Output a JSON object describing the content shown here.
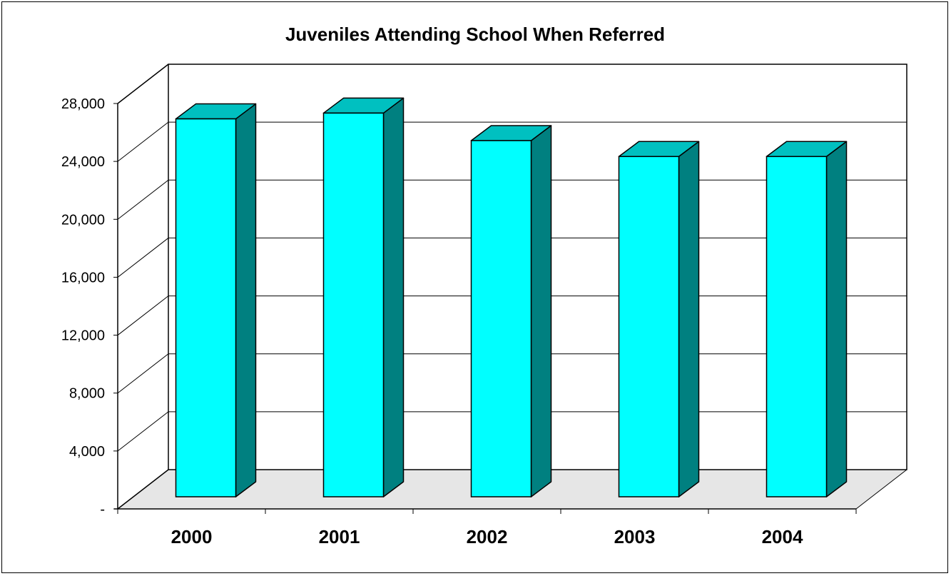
{
  "chart_data": {
    "type": "bar",
    "title": "Juveniles Attending School When Referred",
    "xlabel": "",
    "ylabel": "",
    "categories": [
      "2000",
      "2001",
      "2002",
      "2003",
      "2004"
    ],
    "values": [
      26100,
      26500,
      24600,
      23500,
      23500
    ],
    "ylim": [
      0,
      28000
    ],
    "yticks": [
      0,
      4000,
      8000,
      12000,
      16000,
      20000,
      24000,
      28000
    ],
    "ytick_labels": [
      "-",
      "4,000",
      "8,000",
      "12,000",
      "16,000",
      "20,000",
      "24,000",
      "28,000"
    ],
    "grid": true,
    "legend": "none",
    "style": "3d-column",
    "colors": {
      "bar_front": "#00FFFF",
      "bar_side": "#008080",
      "bar_top": "#00C0C0",
      "floor": "#E6E6E6",
      "gridline": "#000000"
    }
  }
}
